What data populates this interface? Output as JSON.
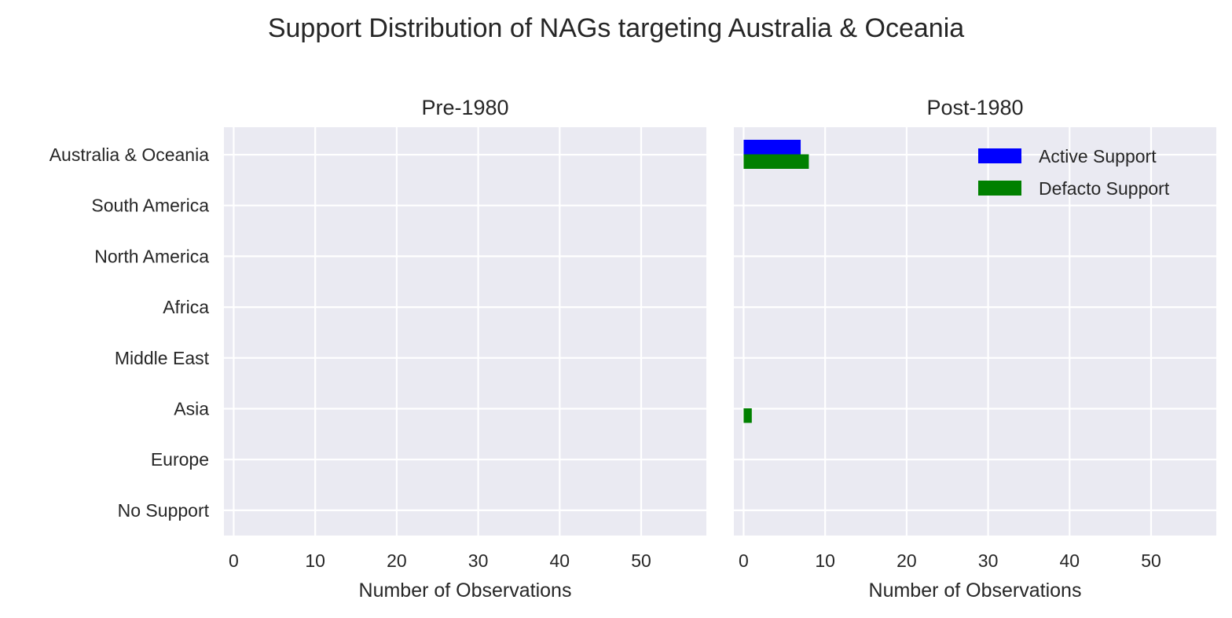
{
  "chart_data": {
    "type": "bar",
    "orientation": "horizontal",
    "title": "Support Distribution of NAGs targeting Australia & Oceania",
    "categories": [
      "Australia & Oceania",
      "South America",
      "North America",
      "Africa",
      "Middle East",
      "Asia",
      "Europe",
      "No Support"
    ],
    "xlim": [
      -1.2,
      58
    ],
    "xticks": [
      0,
      10,
      20,
      30,
      40,
      50
    ],
    "grid": true,
    "series_colors": {
      "Active Support": "#0000ff",
      "Defacto Support": "#008000"
    },
    "panels": [
      {
        "title": "Pre-1980",
        "xlabel": "Number of Observations",
        "show_yticklabels": true,
        "legend": false,
        "series": [
          {
            "name": "Active Support",
            "values": [
              0,
              0,
              0,
              0,
              0,
              0,
              0,
              0
            ]
          },
          {
            "name": "Defacto Support",
            "values": [
              0,
              0,
              0,
              0,
              0,
              0,
              0,
              0
            ]
          }
        ]
      },
      {
        "title": "Post-1980",
        "xlabel": "Number of Observations",
        "show_yticklabels": false,
        "legend": true,
        "legend_position": "top-right",
        "series": [
          {
            "name": "Active Support",
            "values": [
              7,
              0,
              0,
              0,
              0,
              0,
              0,
              0
            ]
          },
          {
            "name": "Defacto Support",
            "values": [
              8,
              0,
              0,
              0,
              0,
              1,
              0,
              0
            ]
          }
        ]
      }
    ]
  }
}
